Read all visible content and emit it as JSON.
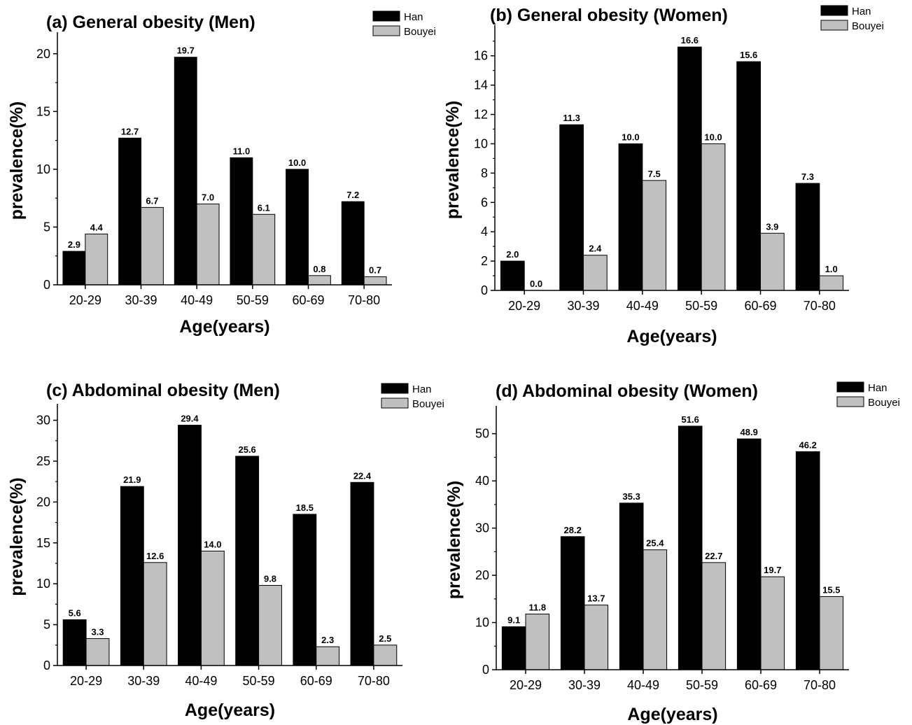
{
  "chart_data": [
    {
      "type": "bar",
      "title": "(a) General obesity (Men)",
      "xlabel": "Age(years)",
      "ylabel": "prevalence(%)",
      "categories": [
        "20-29",
        "30-39",
        "40-49",
        "50-59",
        "60-69",
        "70-80"
      ],
      "ylim": [
        0,
        21.5
      ],
      "yticks": [
        0,
        5,
        10,
        15,
        20
      ],
      "series": [
        {
          "name": "Han",
          "values": [
            2.9,
            12.7,
            19.7,
            11.0,
            10.0,
            7.2
          ],
          "labels": [
            "2.9",
            "12.7",
            "19.7",
            "11.0",
            "10.0",
            "7.2"
          ],
          "color": "#000000"
        },
        {
          "name": "Bouyei",
          "values": [
            4.4,
            6.7,
            7.0,
            6.1,
            0.8,
            0.7
          ],
          "labels": [
            "4.4",
            "6.7",
            "7.0",
            "6.1",
            "0.8",
            "0.7"
          ],
          "color": "#c0c0c0"
        }
      ],
      "legend": "top-right",
      "grid": false
    },
    {
      "type": "bar",
      "title": "(b) General obesity (Women)",
      "xlabel": "Age(years)",
      "ylabel": "prevalence(%)",
      "categories": [
        "20-29",
        "30-39",
        "40-49",
        "50-59",
        "60-69",
        "70-80"
      ],
      "ylim": [
        0,
        17.8
      ],
      "yticks": [
        0,
        2,
        4,
        6,
        8,
        10,
        12,
        14,
        16
      ],
      "series": [
        {
          "name": "Han",
          "values": [
            2.0,
            11.3,
            10.0,
            16.6,
            15.6,
            7.3
          ],
          "labels": [
            "2.0",
            "11.3",
            "10.0",
            "16.6",
            "15.6",
            "7.3"
          ],
          "color": "#000000"
        },
        {
          "name": "Bouyei",
          "values": [
            0.0,
            2.4,
            7.5,
            10.0,
            3.9,
            1.0
          ],
          "labels": [
            "0.0",
            "2.4",
            "7.5",
            "10.0",
            "3.9",
            "1.0"
          ],
          "color": "#c0c0c0"
        }
      ],
      "legend": "top-right",
      "grid": false
    },
    {
      "type": "bar",
      "title": "(c) Abdominal obesity (Men)",
      "xlabel": "Age(years)",
      "ylabel": "prevalence(%)",
      "categories": [
        "20-29",
        "30-39",
        "40-49",
        "50-59",
        "60-69",
        "70-80"
      ],
      "ylim": [
        0,
        31.5
      ],
      "yticks": [
        0,
        5,
        10,
        15,
        20,
        25,
        30
      ],
      "series": [
        {
          "name": "Han",
          "values": [
            5.6,
            21.9,
            29.4,
            25.6,
            18.5,
            22.4
          ],
          "labels": [
            "5.6",
            "21.9",
            "29.4",
            "25.6",
            "18.5",
            "22.4"
          ],
          "color": "#000000"
        },
        {
          "name": "Bouyei",
          "values": [
            3.3,
            12.6,
            14.0,
            9.8,
            2.3,
            2.5
          ],
          "labels": [
            "3.3",
            "12.6",
            "14.0",
            "9.8",
            "2.3",
            "2.5"
          ],
          "color": "#c0c0c0"
        }
      ],
      "legend": "top-right",
      "grid": false
    },
    {
      "type": "bar",
      "title": "(d) Abdominal obesity (Women)",
      "xlabel": "Age(years)",
      "ylabel": "prevalence(%)",
      "categories": [
        "20-29",
        "30-39",
        "40-49",
        "50-59",
        "60-69",
        "70-80"
      ],
      "ylim": [
        0,
        55
      ],
      "yticks": [
        0,
        10,
        20,
        30,
        40,
        50
      ],
      "series": [
        {
          "name": "Han",
          "values": [
            9.1,
            28.2,
            35.3,
            51.6,
            48.9,
            46.2
          ],
          "labels": [
            "9.1",
            "28.2",
            "35.3",
            "51.6",
            "48.9",
            "46.2"
          ],
          "color": "#000000"
        },
        {
          "name": "Bouyei",
          "values": [
            11.8,
            13.7,
            25.4,
            22.7,
            19.7,
            15.5
          ],
          "labels": [
            "11.8",
            "13.7",
            "25.4",
            "22.7",
            "19.7",
            "15.5"
          ],
          "color": "#c0c0c0"
        }
      ],
      "legend": "top-right",
      "grid": false
    }
  ]
}
